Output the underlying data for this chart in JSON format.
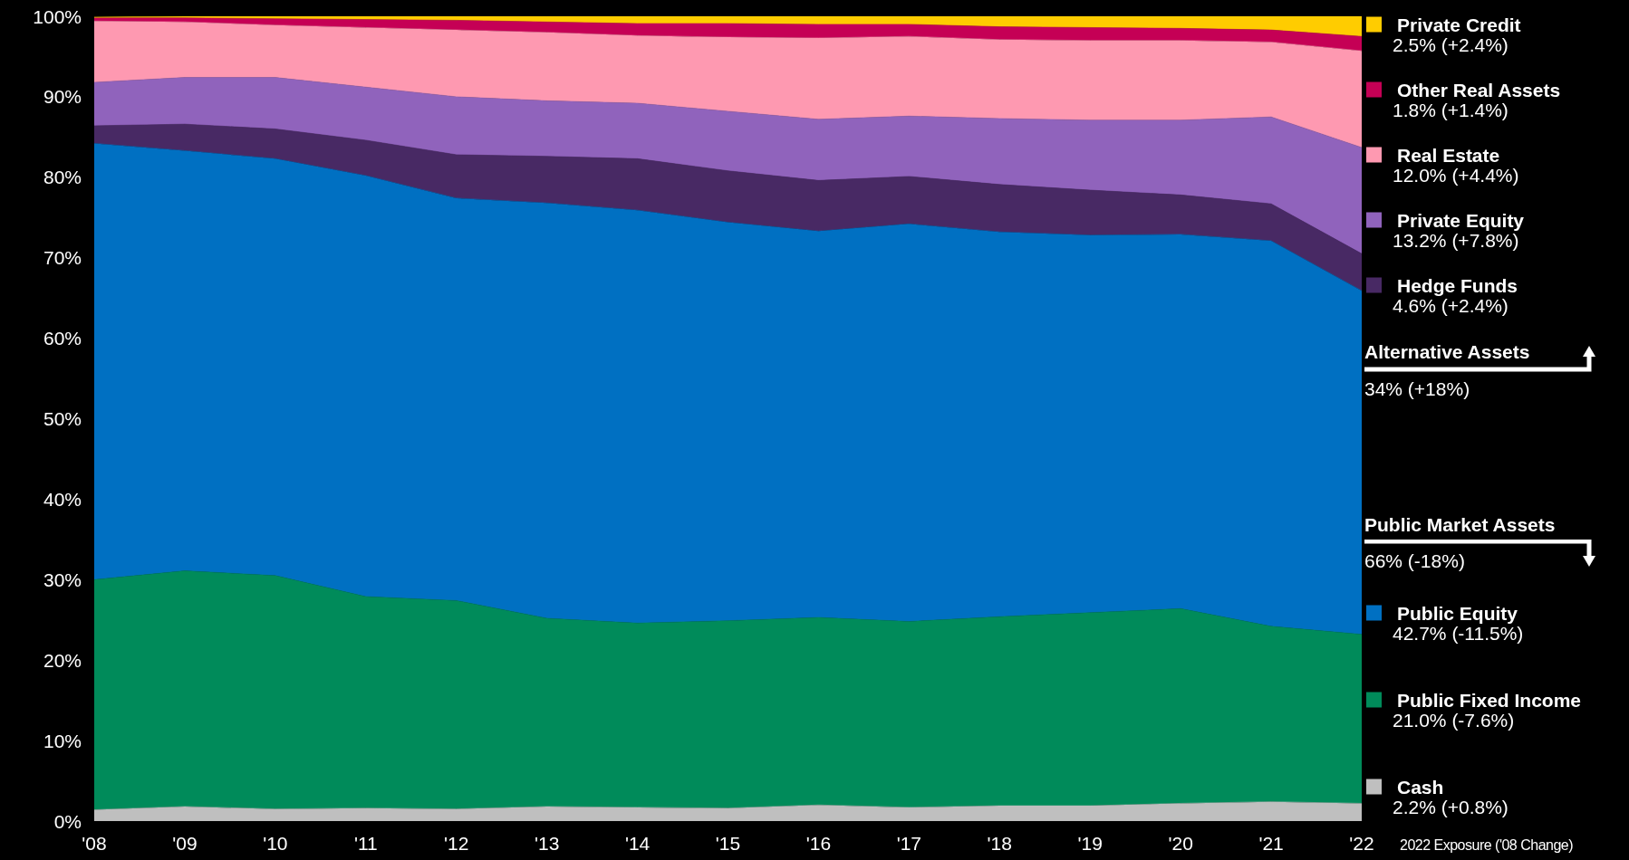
{
  "chart_data": {
    "type": "area",
    "stacked": true,
    "categories": [
      "'08",
      "'09",
      "'10",
      "'11",
      "'12",
      "'13",
      "'14",
      "'15",
      "'16",
      "'17",
      "'18",
      "'19",
      "'20",
      "'21",
      "'22"
    ],
    "ylim": [
      0,
      100
    ],
    "yticks": [
      {
        "value": 0,
        "label": "0%"
      },
      {
        "value": 10,
        "label": "10%"
      },
      {
        "value": 20,
        "label": "20%"
      },
      {
        "value": 30,
        "label": "30%"
      },
      {
        "value": 40,
        "label": "40%"
      },
      {
        "value": 50,
        "label": "50%"
      },
      {
        "value": 60,
        "label": "60%"
      },
      {
        "value": 70,
        "label": "70%"
      },
      {
        "value": 80,
        "label": "80%"
      },
      {
        "value": 90,
        "label": "90%"
      },
      {
        "value": 100,
        "label": "100%"
      }
    ],
    "grid": false,
    "legend": "right",
    "series": [
      {
        "name": "Cash",
        "color": "#bfbfbf",
        "values": [
          1.4,
          1.8,
          1.5,
          1.6,
          1.5,
          1.8,
          1.7,
          1.6,
          2.0,
          1.7,
          1.9,
          1.9,
          2.2,
          2.4,
          2.2
        ]
      },
      {
        "name": "Public Fixed Income",
        "color": "#008b5a",
        "values": [
          28.6,
          29.3,
          29.0,
          26.3,
          25.9,
          23.4,
          22.9,
          23.3,
          23.3,
          23.1,
          23.5,
          24.0,
          24.2,
          21.8,
          21.0
        ]
      },
      {
        "name": "Public Equity",
        "color": "#0070c2",
        "values": [
          54.2,
          52.2,
          51.8,
          52.3,
          50.0,
          51.6,
          51.3,
          49.5,
          48.0,
          49.4,
          47.8,
          46.9,
          46.5,
          47.9,
          42.7
        ]
      },
      {
        "name": "Hedge Funds",
        "color": "#482964",
        "values": [
          2.2,
          3.3,
          3.7,
          4.4,
          5.4,
          5.8,
          6.4,
          6.4,
          6.3,
          5.9,
          5.9,
          5.6,
          4.9,
          4.6,
          4.6
        ]
      },
      {
        "name": "Private Equity",
        "color": "#9063bc",
        "values": [
          5.4,
          5.8,
          6.4,
          6.6,
          7.2,
          6.9,
          6.9,
          7.4,
          7.6,
          7.5,
          8.2,
          8.7,
          9.3,
          10.8,
          13.2
        ]
      },
      {
        "name": "Real Estate",
        "color": "#fe99b1",
        "values": [
          7.6,
          6.9,
          6.5,
          7.4,
          8.3,
          8.5,
          8.4,
          9.2,
          10.1,
          9.9,
          9.8,
          9.9,
          9.9,
          9.3,
          12.0
        ]
      },
      {
        "name": "Other Real Assets",
        "color": "#c50055",
        "values": [
          0.4,
          0.5,
          0.8,
          1.0,
          1.2,
          1.3,
          1.5,
          1.7,
          1.7,
          1.5,
          1.6,
          1.6,
          1.5,
          1.5,
          1.8
        ]
      },
      {
        "name": "Private Credit",
        "color": "#ffcc00",
        "values": [
          0.1,
          0.2,
          0.3,
          0.4,
          0.5,
          0.7,
          0.9,
          0.9,
          1.0,
          1.0,
          1.3,
          1.4,
          1.5,
          1.7,
          2.5
        ]
      }
    ],
    "annotations": [
      "2.2% (+0.8%)",
      "21.0% (-7.6%)",
      "42.7% (-11.5%)",
      "4.6% (+2.4%)",
      "13.2% (+7.8%)",
      "12.0% (+4.4%)",
      "1.8% (+1.4%)",
      "2.5% (+2.4%)",
      "Alternative Assets",
      "34% (+18%)",
      "Public Market Assets",
      "66% (-18%)",
      "2022 Exposure ('08 Change)"
    ]
  }
}
